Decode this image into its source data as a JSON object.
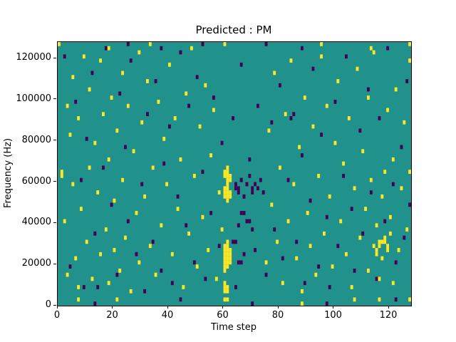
{
  "figure": {
    "title": "Predicted : PM",
    "xlabel": "Time step",
    "ylabel": "Frequency (Hz)"
  },
  "chart_data": {
    "type": "heatmap",
    "title": "Predicted : PM",
    "xlabel": "Time step",
    "ylabel": "Frequency (Hz)",
    "x_range": [
      0,
      128
    ],
    "y_range": [
      0,
      128000
    ],
    "x_ticks": [
      0,
      20,
      40,
      60,
      80,
      100,
      120
    ],
    "y_ticks": [
      0,
      20000,
      40000,
      60000,
      80000,
      100000,
      120000
    ],
    "grid": false,
    "legend": "none",
    "colors": {
      "background": "#21918c",
      "high": "#fde725",
      "low": "#440154"
    },
    "cell_grid": [
      128,
      128
    ],
    "y_bin_hz": 1000,
    "cells": {
      "yellow": [
        [
          60,
          2
        ],
        [
          60,
          6
        ],
        [
          60,
          8
        ],
        [
          60,
          10
        ],
        [
          60,
          16
        ],
        [
          60,
          18
        ],
        [
          60,
          20
        ],
        [
          60,
          22
        ],
        [
          60,
          24
        ],
        [
          60,
          26
        ],
        [
          60,
          28
        ],
        [
          60,
          52
        ],
        [
          60,
          54
        ],
        [
          60,
          56
        ],
        [
          60,
          62
        ],
        [
          60,
          64
        ],
        [
          60,
          126
        ],
        [
          61,
          2
        ],
        [
          61,
          6
        ],
        [
          61,
          8
        ],
        [
          61,
          18
        ],
        [
          61,
          20
        ],
        [
          61,
          22
        ],
        [
          61,
          24
        ],
        [
          61,
          26
        ],
        [
          61,
          28
        ],
        [
          61,
          30
        ],
        [
          61,
          50
        ],
        [
          61,
          52
        ],
        [
          61,
          54
        ],
        [
          61,
          56
        ],
        [
          61,
          58
        ],
        [
          61,
          60
        ],
        [
          61,
          62
        ],
        [
          61,
          64
        ],
        [
          61,
          66
        ],
        [
          62,
          20
        ],
        [
          62,
          22
        ],
        [
          62,
          24
        ],
        [
          62,
          26
        ],
        [
          62,
          52
        ],
        [
          62,
          54
        ],
        [
          62,
          60
        ],
        [
          62,
          62
        ],
        [
          1,
          64
        ],
        [
          1,
          62
        ],
        [
          2,
          40
        ],
        [
          3,
          96
        ],
        [
          3,
          14
        ],
        [
          4,
          82
        ],
        [
          5,
          110
        ],
        [
          5,
          58
        ],
        [
          6,
          22
        ],
        [
          7,
          90
        ],
        [
          7,
          8
        ],
        [
          7,
          2
        ],
        [
          8,
          46
        ],
        [
          9,
          120
        ],
        [
          10,
          30
        ],
        [
          11,
          104
        ],
        [
          11,
          66
        ],
        [
          12,
          12
        ],
        [
          13,
          78
        ],
        [
          14,
          54
        ],
        [
          15,
          118
        ],
        [
          15,
          24
        ],
        [
          16,
          92
        ],
        [
          17,
          36
        ],
        [
          18,
          70
        ],
        [
          18,
          10
        ],
        [
          18,
          124
        ],
        [
          19,
          100
        ],
        [
          20,
          50
        ],
        [
          20,
          26
        ],
        [
          21,
          84
        ],
        [
          21,
          2
        ],
        [
          22,
          16
        ],
        [
          23,
          112
        ],
        [
          23,
          60
        ],
        [
          24,
          32
        ],
        [
          25,
          96
        ],
        [
          26,
          6
        ],
        [
          27,
          74
        ],
        [
          28,
          44
        ],
        [
          29,
          122
        ],
        [
          29,
          20
        ],
        [
          30,
          88
        ],
        [
          31,
          52
        ],
        [
          32,
          108
        ],
        [
          33,
          28
        ],
        [
          33,
          126
        ],
        [
          34,
          66
        ],
        [
          35,
          14
        ],
        [
          36,
          98
        ],
        [
          37,
          38
        ],
        [
          38,
          80
        ],
        [
          39,
          58
        ],
        [
          40,
          116
        ],
        [
          41,
          24
        ],
        [
          42,
          90
        ],
        [
          43,
          46
        ],
        [
          44,
          70
        ],
        [
          45,
          8
        ],
        [
          46,
          102
        ],
        [
          47,
          34
        ],
        [
          48,
          124
        ],
        [
          49,
          62
        ],
        [
          50,
          18
        ],
        [
          51,
          86
        ],
        [
          52,
          42
        ],
        [
          53,
          106
        ],
        [
          54,
          26
        ],
        [
          55,
          72
        ],
        [
          56,
          94
        ],
        [
          57,
          12
        ],
        [
          58,
          54
        ],
        [
          59,
          36
        ],
        [
          0,
          126
        ],
        [
          75,
          20
        ],
        [
          76,
          84
        ],
        [
          77,
          48
        ],
        [
          78,
          112
        ],
        [
          79,
          30
        ],
        [
          80,
          66
        ],
        [
          81,
          10
        ],
        [
          82,
          92
        ],
        [
          83,
          40
        ],
        [
          84,
          118
        ],
        [
          85,
          58
        ],
        [
          86,
          22
        ],
        [
          87,
          76
        ],
        [
          88,
          6
        ],
        [
          88,
          0
        ],
        [
          89,
          100
        ],
        [
          90,
          44
        ],
        [
          91,
          28
        ],
        [
          92,
          86
        ],
        [
          93,
          14
        ],
        [
          94,
          62
        ],
        [
          95,
          120
        ],
        [
          95,
          126
        ],
        [
          96,
          34
        ],
        [
          97,
          96
        ],
        [
          98,
          52
        ],
        [
          99,
          18
        ],
        [
          100,
          78
        ],
        [
          101,
          108
        ],
        [
          102,
          40
        ],
        [
          103,
          68
        ],
        [
          104,
          24
        ],
        [
          105,
          90
        ],
        [
          106,
          8
        ],
        [
          107,
          56
        ],
        [
          107,
          2
        ],
        [
          108,
          114
        ],
        [
          109,
          32
        ],
        [
          110,
          74
        ],
        [
          111,
          46
        ],
        [
          112,
          16
        ],
        [
          112,
          100
        ],
        [
          113,
          60
        ],
        [
          113,
          124
        ],
        [
          114,
          28
        ],
        [
          114,
          122
        ],
        [
          115,
          38
        ],
        [
          116,
          12
        ],
        [
          116,
          30
        ],
        [
          116,
          2
        ],
        [
          117,
          22
        ],
        [
          117,
          52
        ],
        [
          118,
          64
        ],
        [
          118,
          30
        ],
        [
          119,
          94
        ],
        [
          120,
          42
        ],
        [
          121,
          10
        ],
        [
          121,
          70
        ],
        [
          122,
          104
        ],
        [
          123,
          26
        ],
        [
          124,
          56
        ],
        [
          125,
          88
        ],
        [
          126,
          36
        ],
        [
          127,
          64
        ],
        [
          127,
          118
        ],
        [
          127,
          126
        ],
        [
          127,
          2
        ],
        [
          115,
          26
        ],
        [
          116,
          28
        ],
        [
          117,
          30
        ],
        [
          118,
          32
        ],
        [
          119,
          26
        ],
        [
          119,
          28
        ],
        [
          120,
          34
        ],
        [
          115,
          24
        ]
      ],
      "purple": [
        [
          2,
          120
        ],
        [
          4,
          18
        ],
        [
          6,
          98
        ],
        [
          8,
          60
        ],
        [
          9,
          8
        ],
        [
          10,
          80
        ],
        [
          12,
          112
        ],
        [
          13,
          34
        ],
        [
          14,
          8
        ],
        [
          13,
          0
        ],
        [
          16,
          66
        ],
        [
          17,
          124
        ],
        [
          19,
          48
        ],
        [
          21,
          14
        ],
        [
          22,
          102
        ],
        [
          24,
          76
        ],
        [
          25,
          40
        ],
        [
          25,
          126
        ],
        [
          26,
          118
        ],
        [
          28,
          24
        ],
        [
          30,
          58
        ],
        [
          31,
          6
        ],
        [
          32,
          92
        ],
        [
          34,
          30
        ],
        [
          35,
          108
        ],
        [
          37,
          16
        ],
        [
          37,
          125
        ],
        [
          38,
          68
        ],
        [
          40,
          86
        ],
        [
          41,
          10
        ],
        [
          43,
          52
        ],
        [
          44,
          122
        ],
        [
          44,
          2
        ],
        [
          46,
          38
        ],
        [
          47,
          96
        ],
        [
          49,
          20
        ],
        [
          50,
          110
        ],
        [
          52,
          64
        ],
        [
          52,
          126
        ],
        [
          53,
          12
        ],
        [
          55,
          44
        ],
        [
          56,
          100
        ],
        [
          58,
          28
        ],
        [
          59,
          78
        ],
        [
          63,
          90
        ],
        [
          64,
          8
        ],
        [
          66,
          116
        ],
        [
          69,
          70
        ],
        [
          70,
          0
        ],
        [
          71,
          26
        ],
        [
          72,
          96
        ],
        [
          74,
          54
        ],
        [
          75,
          14
        ],
        [
          75,
          127
        ],
        [
          77,
          88
        ],
        [
          78,
          36
        ],
        [
          80,
          106
        ],
        [
          81,
          22
        ],
        [
          83,
          60
        ],
        [
          84,
          90
        ],
        [
          85,
          92
        ],
        [
          86,
          30
        ],
        [
          88,
          72
        ],
        [
          89,
          10
        ],
        [
          91,
          50
        ],
        [
          92,
          114
        ],
        [
          94,
          18
        ],
        [
          95,
          82
        ],
        [
          97,
          42
        ],
        [
          97,
          0
        ],
        [
          98,
          8
        ],
        [
          100,
          98
        ],
        [
          101,
          28
        ],
        [
          103,
          62
        ],
        [
          104,
          120
        ],
        [
          106,
          46
        ],
        [
          107,
          16
        ],
        [
          109,
          84
        ],
        [
          110,
          34
        ],
        [
          112,
          104
        ],
        [
          113,
          54
        ],
        [
          115,
          12
        ],
        [
          116,
          90
        ],
        [
          118,
          40
        ],
        [
          119,
          124
        ],
        [
          121,
          58
        ],
        [
          122,
          20
        ],
        [
          122,
          2
        ],
        [
          124,
          76
        ],
        [
          125,
          32
        ],
        [
          126,
          108
        ],
        [
          127,
          48
        ],
        [
          88,
          125
        ],
        [
          64,
          57
        ],
        [
          64,
          58
        ],
        [
          65,
          55
        ],
        [
          65,
          56
        ],
        [
          66,
          60
        ],
        [
          66,
          61
        ],
        [
          67,
          52
        ],
        [
          67,
          53
        ],
        [
          68,
          58
        ],
        [
          68,
          59
        ],
        [
          69,
          62
        ],
        [
          70,
          55
        ],
        [
          70,
          56
        ],
        [
          66,
          44
        ],
        [
          67,
          45
        ],
        [
          68,
          40
        ],
        [
          69,
          41
        ],
        [
          65,
          38
        ],
        [
          70,
          36
        ],
        [
          71,
          58
        ],
        [
          72,
          57
        ],
        [
          73,
          60
        ],
        [
          65,
          20
        ],
        [
          66,
          21
        ],
        [
          63,
          30
        ],
        [
          64,
          31
        ],
        [
          67,
          24
        ]
      ]
    }
  }
}
